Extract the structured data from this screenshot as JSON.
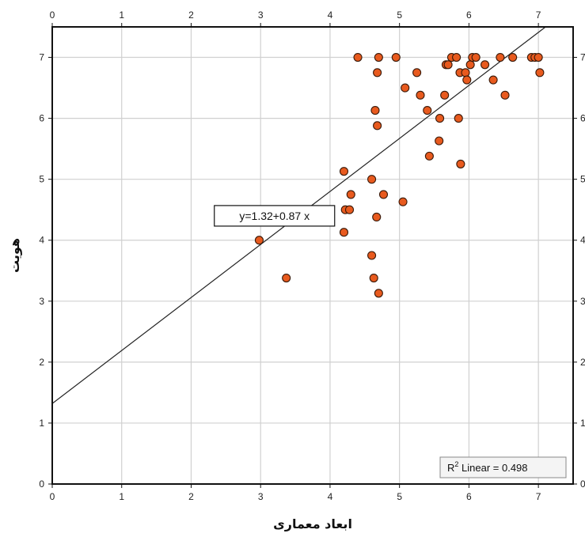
{
  "chart_data": {
    "type": "scatter",
    "title": "",
    "xlabel": "ابعاد معماری",
    "ylabel": "هویت",
    "xlim": [
      0,
      7.5
    ],
    "ylim": [
      0,
      7.5
    ],
    "x_ticks": [
      0,
      1,
      2,
      3,
      4,
      5,
      6,
      7
    ],
    "y_ticks": [
      0,
      1,
      2,
      3,
      4,
      5,
      6,
      7
    ],
    "x_tick_labels": [
      "0",
      "1",
      "2",
      "3",
      "4",
      "5",
      "6",
      "7"
    ],
    "y_tick_labels": [
      "0",
      "1",
      "2",
      "3",
      "4",
      "5",
      "6",
      "7"
    ],
    "top_x_tick_labels": [
      "0",
      "1",
      "2",
      "3",
      "4",
      "5",
      "6",
      "7"
    ],
    "grid": true,
    "fit_line": {
      "intercept": 1.32,
      "slope": 0.87,
      "equation": "y=1.32+0.87 x"
    },
    "r2_label": {
      "prefix": "R",
      "sup": "2",
      "text": " Linear = 0.498"
    },
    "marker_color": "#e85a1e",
    "marker_edge": "#3a1a0a",
    "points": [
      [
        2.98,
        4.0
      ],
      [
        3.37,
        3.38
      ],
      [
        4.2,
        5.13
      ],
      [
        4.22,
        4.5
      ],
      [
        4.2,
        4.13
      ],
      [
        4.28,
        4.5
      ],
      [
        4.3,
        4.75
      ],
      [
        4.4,
        7.0
      ],
      [
        4.6,
        5.0
      ],
      [
        4.6,
        3.75
      ],
      [
        4.63,
        3.38
      ],
      [
        4.65,
        6.13
      ],
      [
        4.67,
        4.38
      ],
      [
        4.68,
        6.75
      ],
      [
        4.68,
        5.88
      ],
      [
        4.7,
        7.0
      ],
      [
        4.7,
        3.13
      ],
      [
        4.77,
        4.75
      ],
      [
        4.95,
        7.0
      ],
      [
        5.05,
        4.63
      ],
      [
        5.08,
        6.5
      ],
      [
        5.25,
        6.75
      ],
      [
        5.3,
        6.38
      ],
      [
        5.4,
        6.13
      ],
      [
        5.43,
        5.38
      ],
      [
        5.57,
        5.63
      ],
      [
        5.58,
        6.0
      ],
      [
        5.65,
        6.38
      ],
      [
        5.67,
        6.88
      ],
      [
        5.7,
        6.88
      ],
      [
        5.75,
        7.0
      ],
      [
        5.82,
        7.0
      ],
      [
        5.85,
        6.0
      ],
      [
        5.87,
        6.75
      ],
      [
        5.88,
        5.25
      ],
      [
        5.95,
        6.75
      ],
      [
        5.97,
        6.63
      ],
      [
        6.02,
        6.88
      ],
      [
        6.05,
        7.0
      ],
      [
        6.1,
        7.0
      ],
      [
        6.23,
        6.88
      ],
      [
        6.35,
        6.63
      ],
      [
        6.45,
        7.0
      ],
      [
        6.52,
        6.38
      ],
      [
        6.63,
        7.0
      ],
      [
        6.9,
        7.0
      ],
      [
        6.95,
        7.0
      ],
      [
        7.0,
        7.0
      ],
      [
        7.02,
        6.75
      ]
    ]
  }
}
